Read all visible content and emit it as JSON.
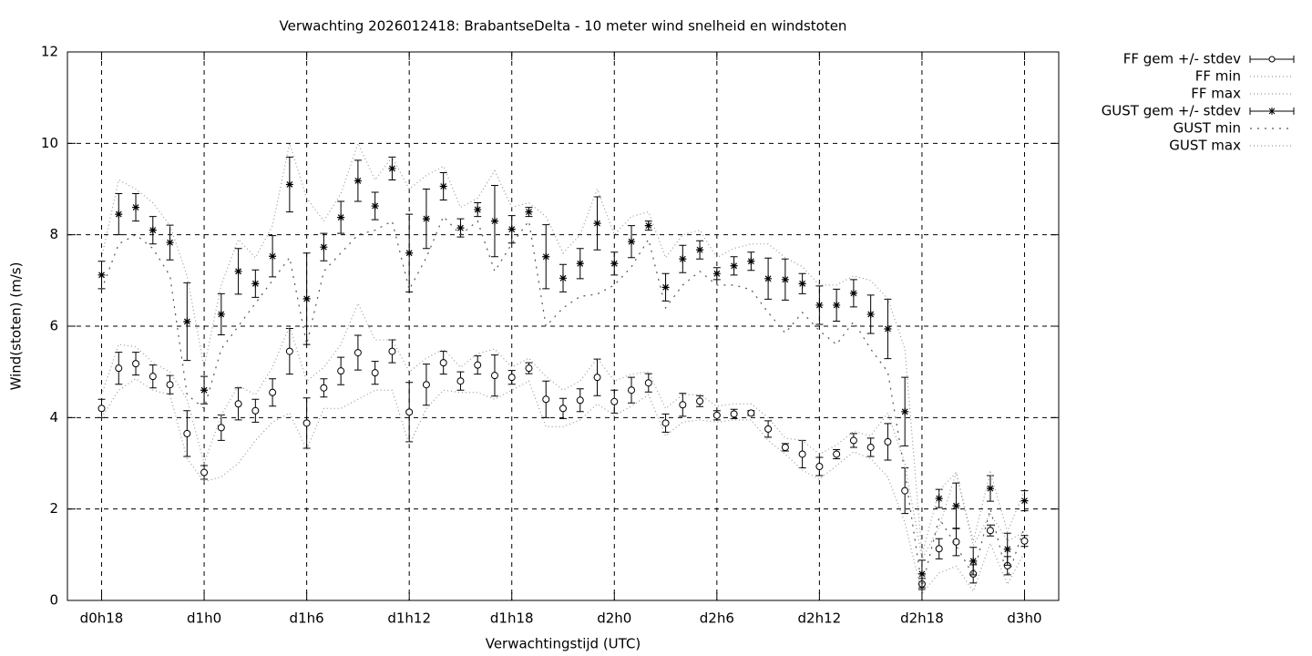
{
  "chart_data": {
    "type": "errorbar",
    "title": "Verwachting 2026012418: BrabantseDelta - 10 meter wind snelheid en windstoten",
    "x_label": "Verwachtingstijd (UTC)",
    "y_label": "Wind(stoten) (m/s)",
    "xlim": [
      16,
      74
    ],
    "ylim": [
      0,
      12
    ],
    "xticks": [
      {
        "value": 18,
        "label": "d0h18"
      },
      {
        "value": 24,
        "label": "d1h0"
      },
      {
        "value": 30,
        "label": "d1h6"
      },
      {
        "value": 36,
        "label": "d1h12"
      },
      {
        "value": 42,
        "label": "d1h18"
      },
      {
        "value": 48,
        "label": "d2h0"
      },
      {
        "value": 54,
        "label": "d2h6"
      },
      {
        "value": 60,
        "label": "d2h12"
      },
      {
        "value": 66,
        "label": "d2h18"
      },
      {
        "value": 72,
        "label": "d3h0"
      }
    ],
    "yticks": [
      0,
      2,
      4,
      6,
      8,
      10,
      12
    ],
    "grid": true,
    "legend": "outside-top-right",
    "x": [
      18,
      19,
      20,
      21,
      22,
      23,
      24,
      25,
      26,
      27,
      28,
      29,
      30,
      31,
      32,
      33,
      34,
      35,
      36,
      37,
      38,
      39,
      40,
      41,
      42,
      43,
      44,
      45,
      46,
      47,
      48,
      49,
      50,
      51,
      52,
      53,
      54,
      55,
      56,
      57,
      58,
      59,
      60,
      61,
      62,
      63,
      64,
      65,
      66,
      67,
      68,
      69,
      70,
      71,
      72
    ],
    "series": [
      {
        "name": "FF gem +/- stdev",
        "color": "#000000",
        "style": "errorbar-circle",
        "values": [
          4.2,
          5.08,
          5.18,
          4.9,
          4.72,
          3.65,
          2.8,
          3.78,
          4.3,
          4.15,
          4.55,
          5.45,
          3.88,
          4.65,
          5.02,
          5.42,
          4.98,
          5.45,
          4.12,
          4.72,
          5.2,
          4.8,
          5.15,
          4.92,
          4.88,
          5.08,
          4.4,
          4.2,
          4.38,
          4.88,
          4.35,
          4.6,
          4.76,
          3.88,
          4.28,
          4.36,
          4.05,
          4.08,
          4.1,
          3.75,
          3.35,
          3.2,
          2.93,
          3.2,
          3.5,
          3.35,
          3.47,
          2.4,
          0.36,
          1.13,
          1.28,
          0.58,
          1.53,
          0.76,
          1.3
        ],
        "errors": [
          0.2,
          0.35,
          0.25,
          0.25,
          0.2,
          0.5,
          0.15,
          0.28,
          0.35,
          0.25,
          0.3,
          0.5,
          0.55,
          0.2,
          0.3,
          0.38,
          0.25,
          0.25,
          0.65,
          0.45,
          0.25,
          0.2,
          0.2,
          0.45,
          0.15,
          0.12,
          0.4,
          0.22,
          0.25,
          0.4,
          0.25,
          0.28,
          0.2,
          0.2,
          0.25,
          0.12,
          0.1,
          0.1,
          0.05,
          0.18,
          0.08,
          0.3,
          0.2,
          0.1,
          0.15,
          0.2,
          0.4,
          0.5,
          0.12,
          0.22,
          0.3,
          0.2,
          0.12,
          0.2,
          0.12
        ]
      },
      {
        "name": "FF min",
        "color": "#999999",
        "style": "dotted",
        "values": [
          4.0,
          4.6,
          4.85,
          4.6,
          4.5,
          3.1,
          2.6,
          2.7,
          3.0,
          3.5,
          3.9,
          4.1,
          3.3,
          4.2,
          4.2,
          4.4,
          4.6,
          4.6,
          3.4,
          4.2,
          4.6,
          4.55,
          4.55,
          4.4,
          4.6,
          4.8,
          3.8,
          3.8,
          3.95,
          4.3,
          4.05,
          4.25,
          4.5,
          3.6,
          3.9,
          3.95,
          3.9,
          3.95,
          3.95,
          3.5,
          3.2,
          2.85,
          2.65,
          2.95,
          3.25,
          3.1,
          2.7,
          1.7,
          0.15,
          0.6,
          0.75,
          0.2,
          1.25,
          0.35,
          1.05
        ]
      },
      {
        "name": "FF max",
        "color": "#999999",
        "style": "dotted",
        "values": [
          4.5,
          5.6,
          5.55,
          5.2,
          5.0,
          4.4,
          3.0,
          4.05,
          4.7,
          4.5,
          5.1,
          6.0,
          4.8,
          5.1,
          5.6,
          6.5,
          5.7,
          5.7,
          5.0,
          5.3,
          5.5,
          5.1,
          5.4,
          5.5,
          5.1,
          5.3,
          4.9,
          4.6,
          4.8,
          5.3,
          4.8,
          4.95,
          5.0,
          4.2,
          4.5,
          4.5,
          4.25,
          4.3,
          4.3,
          4.0,
          3.55,
          3.5,
          3.2,
          3.4,
          3.7,
          3.6,
          4.1,
          3.0,
          0.9,
          1.6,
          2.8,
          1.2,
          1.9,
          1.3,
          1.5
        ]
      },
      {
        "name": "GUST gem +/- stdev",
        "color": "#000000",
        "style": "errorbar-star",
        "values": [
          7.12,
          8.45,
          8.6,
          8.1,
          7.83,
          6.1,
          4.6,
          6.26,
          7.2,
          6.93,
          7.53,
          9.1,
          6.6,
          7.73,
          8.38,
          9.18,
          8.63,
          9.45,
          7.6,
          8.35,
          9.06,
          8.15,
          8.55,
          8.3,
          8.12,
          8.5,
          7.52,
          7.05,
          7.37,
          8.25,
          7.37,
          7.85,
          8.2,
          6.85,
          7.47,
          7.67,
          7.15,
          7.32,
          7.42,
          7.04,
          7.02,
          6.93,
          6.46,
          6.46,
          6.72,
          6.26,
          5.94,
          4.13,
          0.58,
          2.23,
          2.07,
          0.86,
          2.45,
          1.12,
          2.18
        ],
        "errors": [
          0.3,
          0.45,
          0.3,
          0.3,
          0.38,
          0.85,
          0.3,
          0.45,
          0.5,
          0.3,
          0.45,
          0.6,
          1.0,
          0.3,
          0.35,
          0.45,
          0.3,
          0.25,
          0.85,
          0.65,
          0.3,
          0.2,
          0.15,
          0.78,
          0.3,
          0.1,
          0.7,
          0.3,
          0.33,
          0.58,
          0.25,
          0.35,
          0.1,
          0.3,
          0.3,
          0.2,
          0.13,
          0.2,
          0.2,
          0.45,
          0.45,
          0.22,
          0.42,
          0.35,
          0.3,
          0.42,
          0.65,
          0.75,
          0.3,
          0.2,
          0.5,
          0.3,
          0.28,
          0.35,
          0.22
        ]
      },
      {
        "name": "GUST min",
        "color": "#555555",
        "style": "sparse-dotted",
        "values": [
          6.8,
          7.8,
          8.0,
          7.7,
          7.1,
          4.5,
          4.2,
          5.5,
          6.0,
          6.5,
          7.0,
          7.5,
          5.6,
          7.2,
          7.6,
          8.0,
          8.1,
          8.3,
          6.8,
          7.5,
          8.4,
          8.0,
          8.3,
          7.2,
          7.8,
          8.3,
          6.0,
          6.4,
          6.65,
          6.7,
          6.9,
          7.3,
          7.9,
          6.4,
          6.9,
          7.2,
          6.9,
          6.9,
          6.8,
          6.3,
          5.85,
          6.3,
          5.9,
          5.6,
          6.1,
          5.5,
          5.0,
          2.8,
          0.3,
          1.8,
          1.2,
          0.55,
          2.0,
          0.5,
          1.6
        ]
      },
      {
        "name": "GUST max",
        "color": "#999999",
        "style": "dotted",
        "values": [
          7.5,
          9.2,
          9.0,
          8.7,
          8.2,
          7.1,
          5.1,
          6.9,
          7.9,
          7.5,
          8.2,
          10.0,
          8.8,
          8.3,
          8.9,
          10.0,
          9.2,
          9.7,
          9.0,
          9.3,
          9.5,
          8.6,
          8.8,
          9.4,
          8.6,
          8.7,
          8.4,
          7.6,
          8.0,
          9.0,
          8.0,
          8.4,
          8.5,
          7.5,
          8.0,
          8.1,
          7.5,
          7.7,
          7.8,
          7.8,
          7.5,
          7.3,
          6.9,
          6.9,
          7.1,
          7.0,
          6.6,
          5.5,
          1.0,
          2.4,
          2.8,
          1.3,
          2.8,
          1.5,
          2.4
        ]
      }
    ]
  }
}
